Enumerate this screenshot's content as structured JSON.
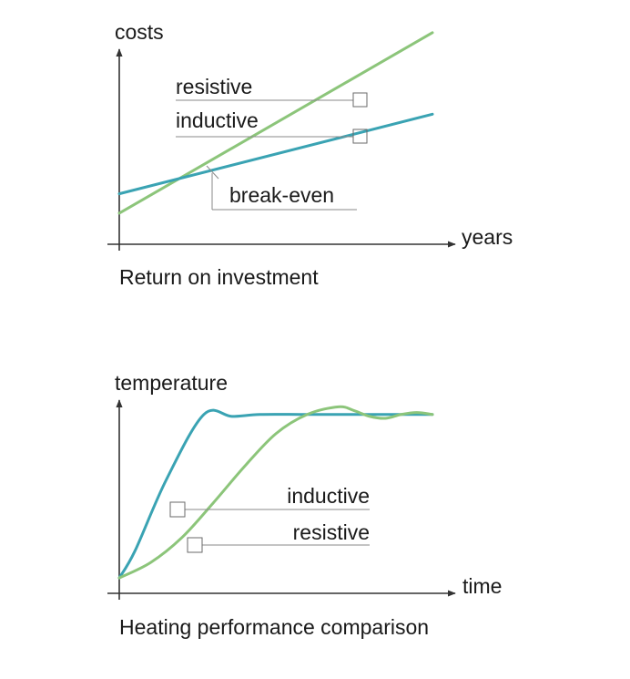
{
  "colors": {
    "inductive": "#3aa3b3",
    "resistive": "#8cc57a",
    "axis": "#333333"
  },
  "chart_data": [
    {
      "type": "line",
      "title": "Return on investment",
      "ylabel": "costs",
      "xlabel": "years",
      "grid": false,
      "xlim": [
        0,
        10
      ],
      "ylim": [
        0,
        10
      ],
      "series": [
        {
          "name": "resistive",
          "x": [
            0,
            10
          ],
          "y": [
            1.6,
            10.9
          ]
        },
        {
          "name": "inductive",
          "x": [
            0,
            10
          ],
          "y": [
            2.6,
            6.7
          ]
        }
      ],
      "annotations": [
        {
          "text": "break-even",
          "x": 2.5,
          "y": 3.6
        }
      ]
    },
    {
      "type": "line",
      "title": "Heating performance comparison",
      "ylabel": "temperature",
      "xlabel": "time",
      "grid": false,
      "xlim": [
        0,
        10
      ],
      "ylim": [
        0,
        10
      ],
      "series": [
        {
          "name": "inductive",
          "x": [
            0,
            0.5,
            1.5,
            2.7,
            3.6,
            4.5,
            6,
            8,
            10
          ],
          "y": [
            0.8,
            2.2,
            5.9,
            9.3,
            9.2,
            9.3,
            9.3,
            9.3,
            9.3
          ]
        },
        {
          "name": "resistive",
          "x": [
            0,
            1,
            2,
            3,
            4,
            5,
            6,
            7,
            7.5,
            8,
            8.5,
            9,
            9.5,
            10
          ],
          "y": [
            0.8,
            1.6,
            2.9,
            4.7,
            6.6,
            8.3,
            9.3,
            9.7,
            9.5,
            9.2,
            9.1,
            9.3,
            9.4,
            9.3
          ]
        }
      ]
    }
  ]
}
